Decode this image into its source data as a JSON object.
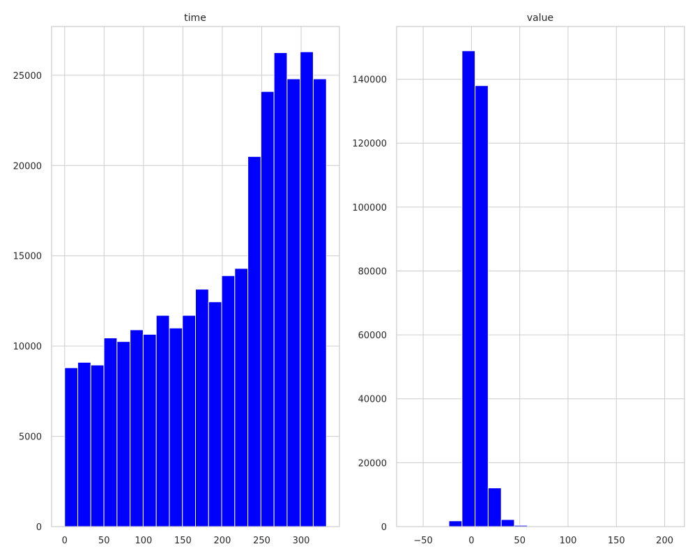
{
  "chart_data": [
    {
      "type": "bar",
      "title": "time",
      "xlabel": "",
      "ylabel": "",
      "color": "#0000ff",
      "grid": true,
      "legend": "none",
      "bin_edges": [
        0,
        16.6,
        33.2,
        49.8,
        66.4,
        83,
        99.6,
        116.2,
        132.8,
        149.4,
        166,
        182.6,
        199.2,
        215.8,
        232.4,
        249,
        265.6,
        282.2,
        298.8,
        315.4,
        332
      ],
      "values": [
        8800,
        9100,
        8950,
        10450,
        10250,
        10900,
        10650,
        11700,
        11000,
        11700,
        13150,
        12450,
        13900,
        14300,
        20500,
        24100,
        26250,
        24800,
        26300,
        24800
      ],
      "xlim": [
        -16.6,
        348.6
      ],
      "ylim": [
        0,
        27700
      ],
      "xticks": [
        0,
        50,
        100,
        150,
        200,
        250,
        300
      ],
      "xtick_labels": [
        "0",
        "50",
        "100",
        "150",
        "200",
        "250",
        "300"
      ],
      "yticks": [
        0,
        5000,
        10000,
        15000,
        20000,
        25000
      ],
      "ytick_labels": [
        "0",
        "5000",
        "10000",
        "15000",
        "20000",
        "25000"
      ]
    },
    {
      "type": "bar",
      "title": "value",
      "xlabel": "",
      "ylabel": "",
      "color": "#0000ff",
      "grid": true,
      "legend": "none",
      "bin_edges": [
        -64,
        -50.45,
        -36.9,
        -23.35,
        -9.8,
        3.75,
        17.3,
        30.85,
        44.4,
        57.95,
        71.5,
        85.05,
        98.6,
        112.15,
        125.7,
        139.25,
        152.8,
        166.35,
        179.9,
        193.45,
        207
      ],
      "values": [
        0,
        30,
        150,
        1800,
        148900,
        138000,
        12100,
        2200,
        400,
        80,
        30,
        10,
        5,
        3,
        2,
        1,
        1,
        1,
        1,
        1
      ],
      "xlim": [
        -77.5,
        220.5
      ],
      "ylim": [
        0,
        156500
      ],
      "xticks": [
        -50,
        0,
        50,
        100,
        150,
        200
      ],
      "xtick_labels": [
        "−50",
        "0",
        "50",
        "100",
        "150",
        "200"
      ],
      "yticks": [
        0,
        20000,
        40000,
        60000,
        80000,
        100000,
        120000,
        140000
      ],
      "ytick_labels": [
        "0",
        "20000",
        "40000",
        "60000",
        "80000",
        "100000",
        "120000",
        "140000"
      ]
    }
  ]
}
